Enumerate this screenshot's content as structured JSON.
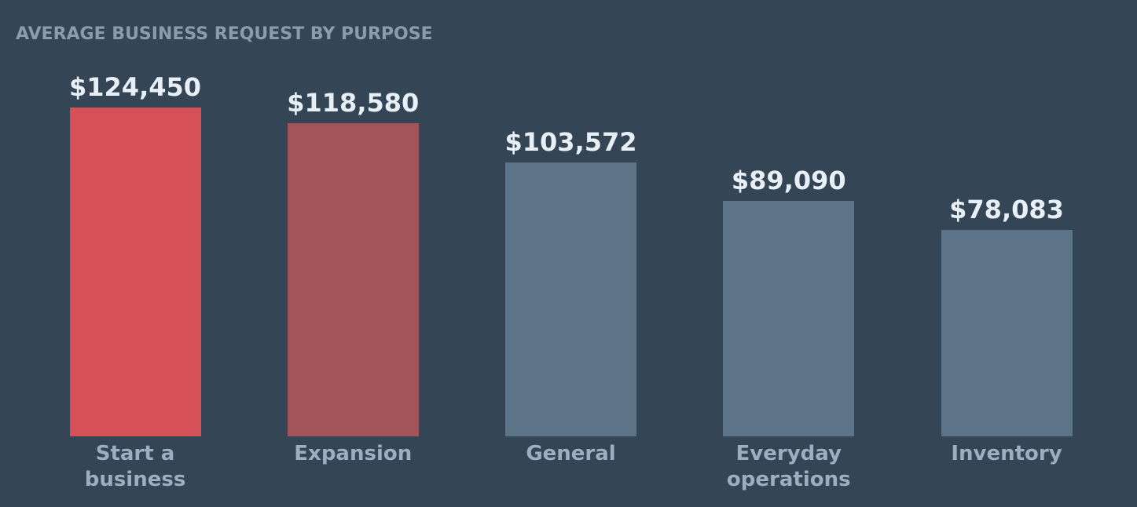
{
  "chart_data": {
    "type": "bar",
    "title": "AVERAGE BUSINESS REQUEST BY PURPOSE",
    "categories": [
      "Start a business",
      "Expansion",
      "General",
      "Everyday operations",
      "Inventory"
    ],
    "values": [
      124450,
      118580,
      103572,
      89090,
      78083
    ],
    "value_labels": [
      "$124,450",
      "$118,580",
      "$103,572",
      "$89,090",
      "$78,083"
    ],
    "colors": [
      "#d65157",
      "#a3545a",
      "#5c7388",
      "#5c7388",
      "#5c7388"
    ]
  }
}
